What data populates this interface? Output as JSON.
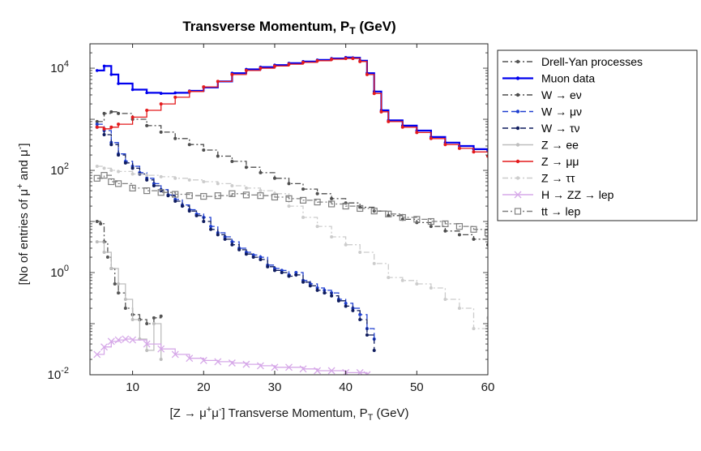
{
  "chart_data": {
    "type": "line",
    "title": "Transverse Momentum, P",
    "title_subscript": "T",
    "title_suffix": " (GeV)",
    "xlabel_prefix": "[Z → μ",
    "xlabel_sup1": "+",
    "xlabel_mid": "μ",
    "xlabel_sup2": "-",
    "xlabel_main": "] Transverse Momentum, P",
    "xlabel_subscript": "T",
    "xlabel_suffix": " (GeV)",
    "ylabel_prefix": "[No of entries of μ",
    "ylabel_sup1": "+",
    "ylabel_mid": " and μ",
    "ylabel_sup2": "-",
    "ylabel_suffix": "]",
    "xlim": [
      4,
      60
    ],
    "ylim": [
      0.01,
      30000
    ],
    "yscale": "log",
    "xticks": [
      10,
      20,
      30,
      40,
      50,
      60
    ],
    "xtick_labels": [
      "10",
      "20",
      "30",
      "40",
      "50",
      "60"
    ],
    "yticks": [
      0.01,
      1,
      100,
      10000
    ],
    "ytick_labels": [
      {
        "base": "10",
        "exp": "-2"
      },
      {
        "base": "10",
        "exp": "0"
      },
      {
        "base": "10",
        "exp": "2"
      },
      {
        "base": "10",
        "exp": "4"
      }
    ],
    "grid": false,
    "legend_position": "outside-right-top",
    "series": [
      {
        "name": "Drell-Yan processes",
        "color": "#555555",
        "linestyle": "dashdot",
        "marker": "dot",
        "x": [
          5,
          5.5,
          6,
          6.5,
          7,
          7.5,
          8,
          9,
          10,
          11,
          12,
          13,
          14
        ],
        "y": [
          10,
          9,
          4,
          2,
          1.2,
          0.6,
          0.4,
          0.2,
          0.15,
          0.12,
          0.1,
          0.13,
          0.14
        ]
      },
      {
        "name": "Muon data",
        "color": "#0000ee",
        "linestyle": "solid",
        "marker": "dot",
        "x": [
          5,
          6,
          7,
          8,
          10,
          12,
          14,
          16,
          18,
          20,
          22,
          24,
          26,
          28,
          30,
          32,
          34,
          36,
          38,
          40,
          41,
          42,
          43,
          44,
          45,
          46,
          48,
          50,
          52,
          54,
          56,
          58,
          60
        ],
        "y": [
          9000,
          11000,
          7500,
          5000,
          3800,
          3300,
          3200,
          3300,
          3600,
          4200,
          5500,
          8000,
          9500,
          10500,
          11500,
          12500,
          13500,
          14500,
          15500,
          16200,
          16000,
          14000,
          8000,
          3500,
          1500,
          950,
          750,
          600,
          450,
          350,
          300,
          260,
          240
        ]
      },
      {
        "name": "W → eν",
        "name_sup": "",
        "color": "#4d4d4d",
        "linestyle": "dashdot",
        "marker": "dot",
        "x": [
          5,
          6,
          7,
          8,
          10,
          12,
          14,
          16,
          18,
          20,
          22,
          24,
          26,
          28,
          30,
          32,
          34,
          36,
          38,
          40,
          42,
          44,
          46,
          48,
          50,
          52,
          54,
          56,
          58,
          60
        ],
        "y": [
          900,
          1300,
          1400,
          1300,
          1000,
          750,
          560,
          420,
          320,
          250,
          190,
          150,
          115,
          90,
          70,
          55,
          43,
          35,
          28,
          23,
          19,
          16,
          13,
          11,
          9.5,
          8,
          6.5,
          5.5,
          4.5,
          3.5
        ]
      },
      {
        "name": "W → μν",
        "color": "#1f3fd0",
        "linestyle": "dashed",
        "marker": "dot",
        "x": [
          5,
          6,
          7,
          8,
          9,
          10,
          11,
          12,
          13,
          14,
          15,
          16,
          17,
          18,
          19,
          20,
          21,
          22,
          23,
          24,
          25,
          26,
          27,
          28,
          29,
          30,
          31,
          32,
          33,
          34,
          35,
          36,
          37,
          38,
          39,
          40,
          41,
          42,
          43,
          44
        ],
        "y": [
          800,
          600,
          350,
          210,
          150,
          120,
          90,
          70,
          55,
          42,
          33,
          27,
          21,
          17,
          14,
          12,
          8,
          6,
          5,
          4,
          3,
          2.5,
          2.2,
          2,
          1.4,
          1.2,
          1.1,
          0.9,
          1.0,
          0.7,
          0.6,
          0.5,
          0.45,
          0.4,
          0.3,
          0.25,
          0.2,
          0.15,
          0.08,
          0.05
        ]
      },
      {
        "name": "W → τν",
        "color": "#0f1c5e",
        "linestyle": "dashed",
        "marker": "dot",
        "x": [
          5,
          6,
          7,
          8,
          9,
          10,
          11,
          12,
          13,
          14,
          15,
          16,
          17,
          18,
          19,
          20,
          21,
          22,
          23,
          24,
          25,
          26,
          27,
          28,
          29,
          30,
          31,
          32,
          33,
          34,
          35,
          36,
          37,
          38,
          39,
          40,
          41,
          42,
          43,
          44
        ],
        "y": [
          700,
          500,
          320,
          200,
          140,
          110,
          85,
          65,
          50,
          40,
          32,
          25,
          20,
          16,
          13,
          10,
          7,
          5.5,
          4.5,
          3.5,
          2.8,
          2.3,
          2,
          1.8,
          1.3,
          1.1,
          1.0,
          0.85,
          0.9,
          0.65,
          0.55,
          0.45,
          0.4,
          0.35,
          0.28,
          0.22,
          0.18,
          0.12,
          0.06,
          0.03
        ]
      },
      {
        "name": "Z → ee",
        "color": "#bdbdbd",
        "linestyle": "solid",
        "marker": "dot",
        "x": [
          5,
          6,
          7,
          8,
          9,
          10,
          11,
          12,
          13,
          14
        ],
        "y": [
          4,
          2.5,
          1.2,
          0.6,
          0.3,
          0.12,
          0.05,
          0.03,
          0.1,
          0.02
        ]
      },
      {
        "name": "Z → μμ",
        "color": "#e41a1c",
        "linestyle": "solid",
        "marker": "dot",
        "x": [
          5,
          6,
          7,
          8,
          10,
          12,
          14,
          16,
          18,
          20,
          22,
          24,
          26,
          28,
          30,
          32,
          34,
          36,
          38,
          40,
          41,
          42,
          43,
          44,
          45,
          46,
          48,
          50,
          52,
          54,
          56,
          58,
          60
        ],
        "y": [
          700,
          650,
          700,
          800,
          1100,
          1500,
          2000,
          2700,
          3500,
          4300,
          5500,
          7500,
          9000,
          10000,
          11000,
          12000,
          13000,
          14000,
          15000,
          15500,
          15500,
          13500,
          7500,
          3200,
          1400,
          900,
          700,
          550,
          420,
          320,
          270,
          230,
          190
        ]
      },
      {
        "name": "Z → ττ",
        "color": "#cccccc",
        "linestyle": "dashdot",
        "marker": "dot",
        "x": [
          5,
          6,
          7,
          8,
          10,
          12,
          14,
          16,
          18,
          20,
          22,
          24,
          26,
          28,
          30,
          32,
          34,
          36,
          38,
          40,
          42,
          44,
          46,
          48,
          50,
          52,
          54,
          56,
          58,
          60
        ],
        "y": [
          120,
          110,
          100,
          95,
          85,
          80,
          75,
          70,
          65,
          60,
          55,
          50,
          45,
          40,
          35,
          20,
          12,
          8,
          5,
          3.5,
          2.5,
          1.5,
          0.8,
          0.7,
          0.6,
          0.5,
          0.3,
          0.2,
          0.08,
          0.13
        ]
      },
      {
        "name": "H → ZZ → lep",
        "color": "#d6a8e8",
        "linestyle": "solid",
        "marker": "x",
        "x": [
          5,
          6,
          7,
          8,
          9,
          10,
          12,
          14,
          16,
          18,
          20,
          22,
          24,
          26,
          28,
          30,
          32,
          34,
          36,
          38,
          40,
          42,
          43
        ],
        "y": [
          0.025,
          0.035,
          0.045,
          0.048,
          0.05,
          0.048,
          0.04,
          0.032,
          0.025,
          0.021,
          0.019,
          0.018,
          0.017,
          0.016,
          0.015,
          0.014,
          0.014,
          0.013,
          0.012,
          0.012,
          0.011,
          0.011,
          0.01
        ]
      },
      {
        "name": "tt → lep",
        "color": "#808080",
        "linestyle": "dashdot",
        "marker": "square",
        "x": [
          5,
          6,
          7,
          8,
          10,
          12,
          14,
          16,
          18,
          20,
          22,
          24,
          26,
          28,
          30,
          32,
          34,
          36,
          38,
          40,
          42,
          44,
          46,
          48,
          50,
          52,
          54,
          56,
          58,
          60
        ],
        "y": [
          70,
          80,
          60,
          55,
          45,
          40,
          37,
          34,
          32,
          31,
          32,
          35,
          33,
          32,
          30,
          28,
          26,
          24,
          22,
          20,
          18,
          16,
          14,
          12,
          11,
          10,
          9,
          8,
          7,
          6
        ]
      }
    ],
    "legend_entries": [
      {
        "label": "Drell-Yan processes"
      },
      {
        "label": "Muon data"
      },
      {
        "label": "W → eν"
      },
      {
        "label": "W → μν"
      },
      {
        "label": "W → τν"
      },
      {
        "label": "Z → ee"
      },
      {
        "label": "Z → μμ"
      },
      {
        "label": "Z → ττ"
      },
      {
        "label": "H → ZZ → lep"
      },
      {
        "label": "tt → lep"
      }
    ]
  }
}
